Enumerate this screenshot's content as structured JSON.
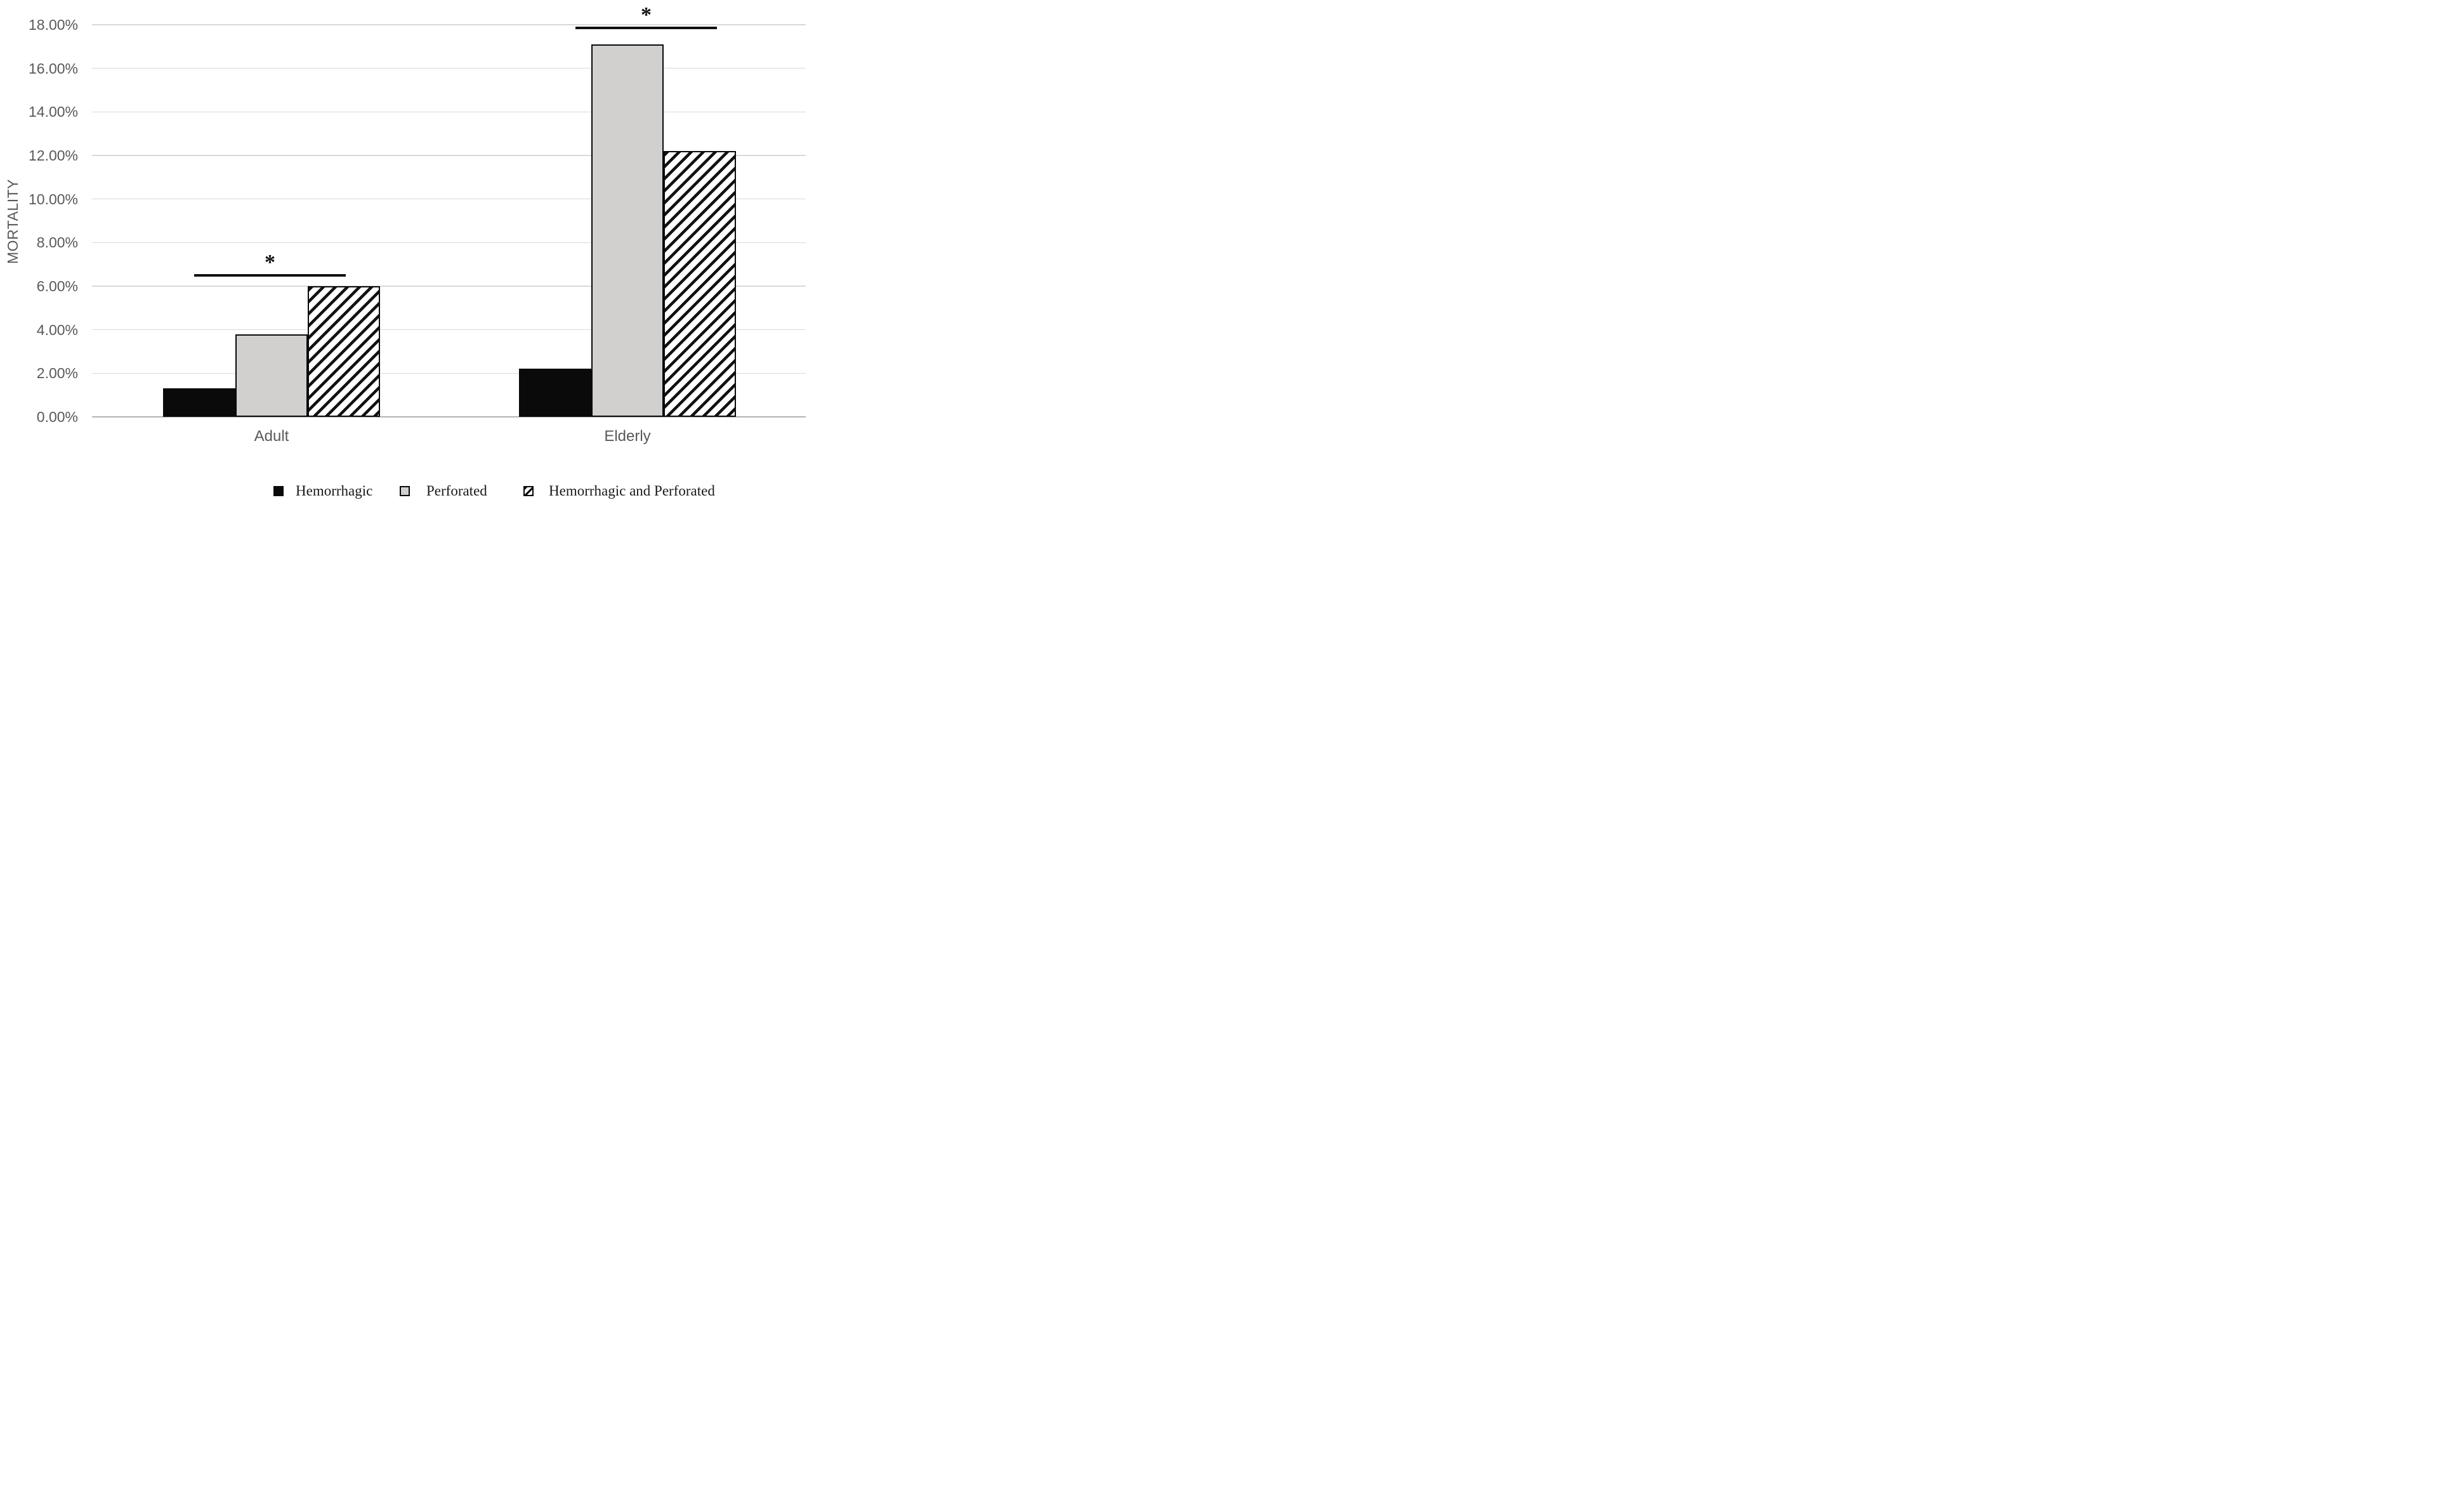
{
  "chart_data": {
    "type": "bar",
    "title": "",
    "xlabel": "",
    "ylabel": "MORTALITY",
    "categories": [
      "Adult",
      "Elderly"
    ],
    "series": [
      {
        "name": "Hemorrhagic",
        "values": [
          1.3,
          2.2
        ],
        "pattern": "solid-black",
        "fill": "#0a0a0a"
      },
      {
        "name": "Perforated",
        "values": [
          3.8,
          17.1
        ],
        "pattern": "solid-gray",
        "fill": "#d2d0ce",
        "border": "#0a0a0a"
      },
      {
        "name": "Hemorrhagic and Perforated",
        "values": [
          6.0,
          12.2
        ],
        "pattern": "hatch",
        "fill": "#ffffff",
        "border": "#0a0a0a",
        "hatch_direction": "forward-slash"
      }
    ],
    "ylim": [
      0,
      18
    ],
    "ytick_step": 2,
    "ytick_labels": [
      "0.00%",
      "2.00%",
      "4.00%",
      "6.00%",
      "8.00%",
      "10.00%",
      "12.00%",
      "14.00%",
      "16.00%",
      "18.00%"
    ],
    "grid": true,
    "legend_position": "bottom",
    "annotations": [
      {
        "type": "significance-bracket",
        "label": "*",
        "category": "Adult",
        "y_value": 6.55
      },
      {
        "type": "significance-bracket",
        "label": "*",
        "category": "Elderly",
        "y_value": 17.9
      }
    ]
  },
  "colors": {
    "bar_black": "#0a0a0a",
    "bar_gray": "#d2d0ce",
    "hatch_stripe": "#111111",
    "gridline": "#d9d9d9",
    "axis_line": "#b3b3b3",
    "axis_text": "#595959",
    "legend_text": "#1a1a1a",
    "background": "#ffffff"
  }
}
